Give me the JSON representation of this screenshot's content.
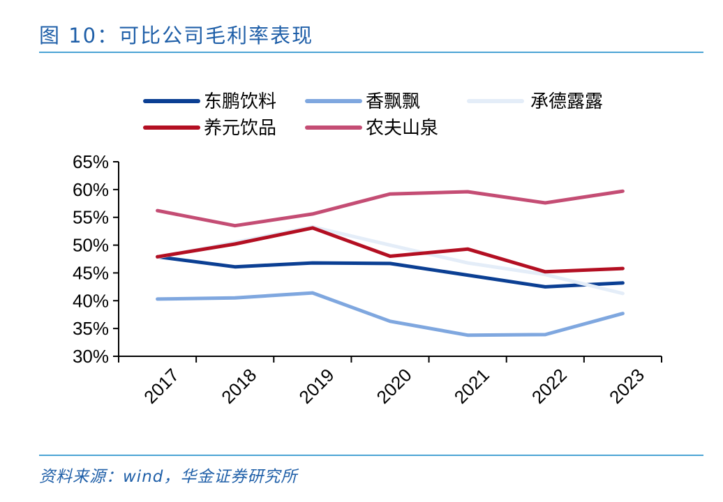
{
  "header": {
    "title": "图 10：可比公司毛利率表现"
  },
  "footer": {
    "source": "资料来源：wind，华金证券研究所"
  },
  "chart_data": {
    "type": "line",
    "categories": [
      "2017",
      "2018",
      "2019",
      "2020",
      "2021",
      "2022",
      "2023"
    ],
    "ylim": [
      0.3,
      0.65
    ],
    "yticks": [
      "65%",
      "60%",
      "55%",
      "50%",
      "45%",
      "40%",
      "35%",
      "30%"
    ],
    "legend_position": "top",
    "grid": false,
    "series": [
      {
        "name": "东鹏饮料",
        "color": "#0b3f93",
        "values": [
          0.479,
          0.461,
          0.468,
          0.467,
          0.446,
          0.425,
          0.432
        ]
      },
      {
        "name": "香飘飘",
        "color": "#7fa7df",
        "values": [
          0.403,
          0.405,
          0.414,
          0.363,
          0.338,
          0.339,
          0.377
        ]
      },
      {
        "name": "承德露露",
        "color": "#e4edf8",
        "values": [
          0.478,
          0.505,
          0.533,
          0.5,
          0.468,
          0.447,
          0.413
        ]
      },
      {
        "name": "养元饮品",
        "color": "#b30f22",
        "values": [
          0.479,
          0.502,
          0.531,
          0.48,
          0.493,
          0.452,
          0.458
        ]
      },
      {
        "name": "农夫山泉",
        "color": "#c44d74",
        "values": [
          0.562,
          0.535,
          0.556,
          0.592,
          0.596,
          0.576,
          0.597
        ]
      }
    ]
  }
}
